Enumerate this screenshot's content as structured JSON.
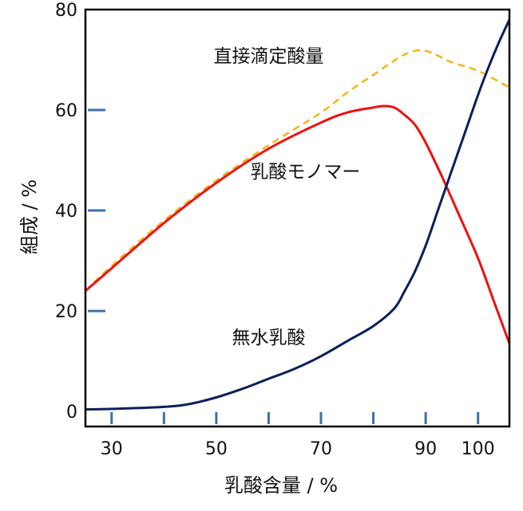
{
  "chart_data": {
    "type": "line",
    "title": "",
    "xlabel": "乳酸含量 / %",
    "ylabel": "組成 / %",
    "xlim": [
      25,
      106
    ],
    "ylim": [
      -3,
      80
    ],
    "x_ticks": [
      30,
      40,
      50,
      60,
      70,
      80,
      90,
      100
    ],
    "x_tick_labels": [
      "30",
      "",
      "50",
      "",
      "70",
      "",
      "90",
      "100"
    ],
    "y_ticks": [
      0,
      20,
      40,
      60,
      80
    ],
    "y_tick_labels": [
      "0",
      "20",
      "40",
      "60",
      "80"
    ],
    "grid": false,
    "legend": "none",
    "series": [
      {
        "name": "直接滴定酸量",
        "color": "#F5B515",
        "dash": true,
        "points": [
          [
            25,
            24
          ],
          [
            30,
            29
          ],
          [
            40,
            38
          ],
          [
            50,
            46
          ],
          [
            60,
            53
          ],
          [
            70,
            59.5
          ],
          [
            75,
            63.5
          ],
          [
            80,
            67
          ],
          [
            85,
            70.5
          ],
          [
            88,
            71.8
          ],
          [
            90,
            71.8
          ],
          [
            92,
            71
          ],
          [
            95,
            69.5
          ],
          [
            100,
            67.8
          ],
          [
            106,
            64.5
          ]
        ]
      },
      {
        "name": "乳酸モノマー",
        "color": "#EE1111",
        "dash": false,
        "points": [
          [
            25,
            24
          ],
          [
            30,
            28.5
          ],
          [
            40,
            37.5
          ],
          [
            50,
            45.5
          ],
          [
            60,
            52.3
          ],
          [
            70,
            57.5
          ],
          [
            75,
            59.5
          ],
          [
            80,
            60.5
          ],
          [
            82,
            60.8
          ],
          [
            84,
            60.5
          ],
          [
            86,
            59
          ],
          [
            88,
            57
          ],
          [
            90,
            53.5
          ],
          [
            93,
            47
          ],
          [
            96,
            40
          ],
          [
            100,
            30.5
          ],
          [
            103,
            22
          ],
          [
            106,
            13.5
          ]
        ]
      },
      {
        "name": "無水乳酸",
        "color": "#0B1F5C",
        "dash": false,
        "points": [
          [
            25,
            0.4
          ],
          [
            30,
            0.5
          ],
          [
            40,
            0.9
          ],
          [
            45,
            1.5
          ],
          [
            50,
            2.8
          ],
          [
            55,
            4.5
          ],
          [
            60,
            6.5
          ],
          [
            65,
            8.5
          ],
          [
            70,
            11
          ],
          [
            75,
            14
          ],
          [
            80,
            17
          ],
          [
            84,
            20.5
          ],
          [
            86,
            24
          ],
          [
            88,
            28
          ],
          [
            90,
            33
          ],
          [
            92,
            39
          ],
          [
            94,
            45
          ],
          [
            96,
            51
          ],
          [
            98,
            57
          ],
          [
            100,
            63
          ],
          [
            102,
            68.5
          ],
          [
            104,
            73.5
          ],
          [
            106,
            78
          ]
        ]
      }
    ],
    "annotations": [
      {
        "text": "直接滴定酸量",
        "x": 60,
        "y": 69.5
      },
      {
        "text": "乳酸モノマー",
        "x": 67,
        "y": 46.5
      },
      {
        "text": "無水乳酸",
        "x": 60,
        "y": 13.5
      }
    ]
  }
}
